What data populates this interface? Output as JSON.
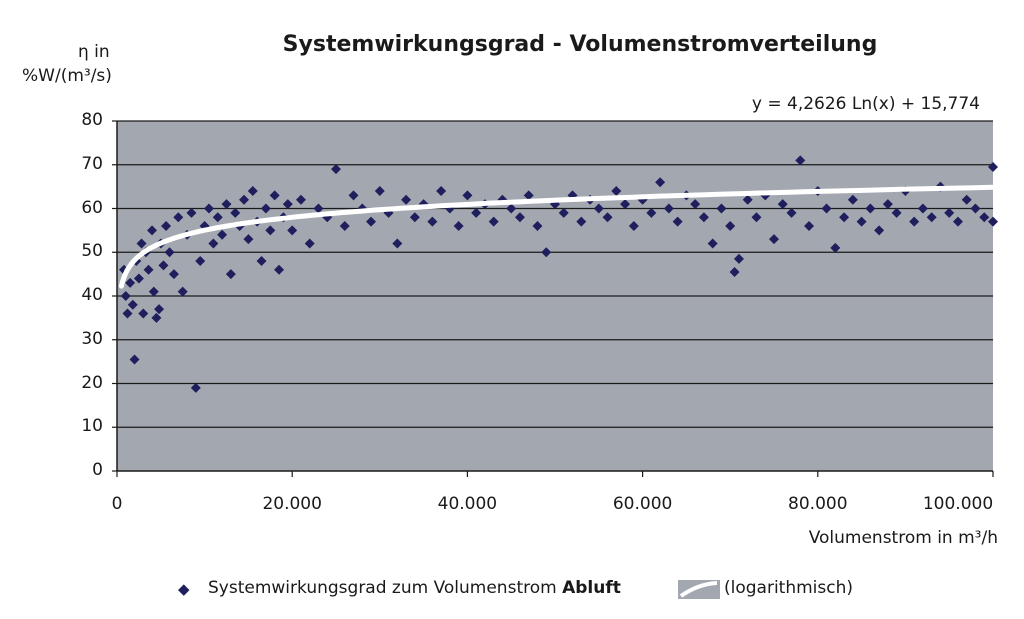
{
  "chart_data": {
    "type": "scatter",
    "title": "Systemwirkungsgrad - Volumenstromverteilung",
    "ylabel_line1": "η in",
    "ylabel_line2": "%W/(m³/s)",
    "xlabel": "Volumenstrom in m³/h",
    "equation": "y = 4,2626 Ln(x) + 15,774",
    "xlim": [
      0,
      100000
    ],
    "ylim": [
      0,
      80
    ],
    "x_ticks": [
      0,
      20000,
      40000,
      60000,
      80000,
      100000
    ],
    "x_tick_labels": [
      "0",
      "20.000",
      "40.000",
      "60.000",
      "80.000",
      "100.000"
    ],
    "y_ticks": [
      0,
      10,
      20,
      30,
      40,
      50,
      60,
      70,
      80
    ],
    "y_tick_labels": [
      "0",
      "10",
      "20",
      "30",
      "40",
      "50",
      "60",
      "70",
      "80"
    ],
    "grid": "horizontal",
    "legend_position": "bottom",
    "colors": {
      "plot_background": "#a3a8b0",
      "points": "#1f1f5e",
      "trendline": "#ffffff",
      "grid": "#1a1a1a"
    },
    "series": [
      {
        "name": "Systemwirkungsgrad zum Volumenstrom Abluft",
        "name_plain": "Systemwirkungsgrad zum Volumenstrom ",
        "name_bold": "Abluft",
        "marker": "diamond",
        "points": [
          [
            800,
            46
          ],
          [
            1000,
            40
          ],
          [
            1200,
            36
          ],
          [
            1500,
            43
          ],
          [
            1800,
            38
          ],
          [
            2000,
            25.5
          ],
          [
            2200,
            48
          ],
          [
            2500,
            44
          ],
          [
            2800,
            52
          ],
          [
            3000,
            36
          ],
          [
            3300,
            50
          ],
          [
            3600,
            46
          ],
          [
            4000,
            55
          ],
          [
            4200,
            41
          ],
          [
            4500,
            35
          ],
          [
            4800,
            37
          ],
          [
            5000,
            52
          ],
          [
            5300,
            47
          ],
          [
            5600,
            56
          ],
          [
            6000,
            50
          ],
          [
            6500,
            45
          ],
          [
            7000,
            58
          ],
          [
            7500,
            41
          ],
          [
            8000,
            54
          ],
          [
            8500,
            59
          ],
          [
            9000,
            19
          ],
          [
            9500,
            48
          ],
          [
            10000,
            56
          ],
          [
            10500,
            60
          ],
          [
            11000,
            52
          ],
          [
            11500,
            58
          ],
          [
            12000,
            54
          ],
          [
            12500,
            61
          ],
          [
            13000,
            45
          ],
          [
            13500,
            59
          ],
          [
            14000,
            56
          ],
          [
            14500,
            62
          ],
          [
            15000,
            53
          ],
          [
            15500,
            64
          ],
          [
            16000,
            57
          ],
          [
            16500,
            48
          ],
          [
            17000,
            60
          ],
          [
            17500,
            55
          ],
          [
            18000,
            63
          ],
          [
            18500,
            46
          ],
          [
            19000,
            58
          ],
          [
            19500,
            61
          ],
          [
            20000,
            55
          ],
          [
            21000,
            62
          ],
          [
            22000,
            52
          ],
          [
            23000,
            60
          ],
          [
            24000,
            58
          ],
          [
            25000,
            69
          ],
          [
            26000,
            56
          ],
          [
            27000,
            63
          ],
          [
            28000,
            60
          ],
          [
            29000,
            57
          ],
          [
            30000,
            64
          ],
          [
            31000,
            59
          ],
          [
            32000,
            52
          ],
          [
            33000,
            62
          ],
          [
            34000,
            58
          ],
          [
            35000,
            61
          ],
          [
            36000,
            57
          ],
          [
            37000,
            64
          ],
          [
            38000,
            60
          ],
          [
            39000,
            56
          ],
          [
            40000,
            63
          ],
          [
            41000,
            59
          ],
          [
            42000,
            61
          ],
          [
            43000,
            57
          ],
          [
            44000,
            62
          ],
          [
            45000,
            60
          ],
          [
            46000,
            58
          ],
          [
            47000,
            63
          ],
          [
            48000,
            56
          ],
          [
            49000,
            50
          ],
          [
            50000,
            61
          ],
          [
            51000,
            59
          ],
          [
            52000,
            63
          ],
          [
            53000,
            57
          ],
          [
            54000,
            62
          ],
          [
            55000,
            60
          ],
          [
            56000,
            58
          ],
          [
            57000,
            64
          ],
          [
            58000,
            61
          ],
          [
            59000,
            56
          ],
          [
            60000,
            62
          ],
          [
            61000,
            59
          ],
          [
            62000,
            66
          ],
          [
            63000,
            60
          ],
          [
            64000,
            57
          ],
          [
            65000,
            63
          ],
          [
            66000,
            61
          ],
          [
            67000,
            58
          ],
          [
            68000,
            52
          ],
          [
            69000,
            60
          ],
          [
            70000,
            56
          ],
          [
            70500,
            45.5
          ],
          [
            71000,
            48.5
          ],
          [
            72000,
            62
          ],
          [
            73000,
            58
          ],
          [
            74000,
            63
          ],
          [
            75000,
            53
          ],
          [
            76000,
            61
          ],
          [
            77000,
            59
          ],
          [
            78000,
            71
          ],
          [
            79000,
            56
          ],
          [
            80000,
            64
          ],
          [
            81000,
            60
          ],
          [
            82000,
            51
          ],
          [
            83000,
            58
          ],
          [
            84000,
            62
          ],
          [
            85000,
            57
          ],
          [
            86000,
            60
          ],
          [
            87000,
            55
          ],
          [
            88000,
            61
          ],
          [
            89000,
            59
          ],
          [
            90000,
            64
          ],
          [
            91000,
            57
          ],
          [
            92000,
            60
          ],
          [
            93000,
            58
          ],
          [
            94000,
            65
          ],
          [
            95000,
            59
          ],
          [
            96000,
            57
          ],
          [
            97000,
            62
          ],
          [
            98000,
            60
          ],
          [
            99000,
            58
          ],
          [
            100000,
            69.5
          ],
          [
            100000,
            57
          ]
        ]
      },
      {
        "name": "(logarithmisch)",
        "type": "trendline",
        "formula": {
          "a": 4.2626,
          "b": 15.774
        }
      }
    ]
  }
}
